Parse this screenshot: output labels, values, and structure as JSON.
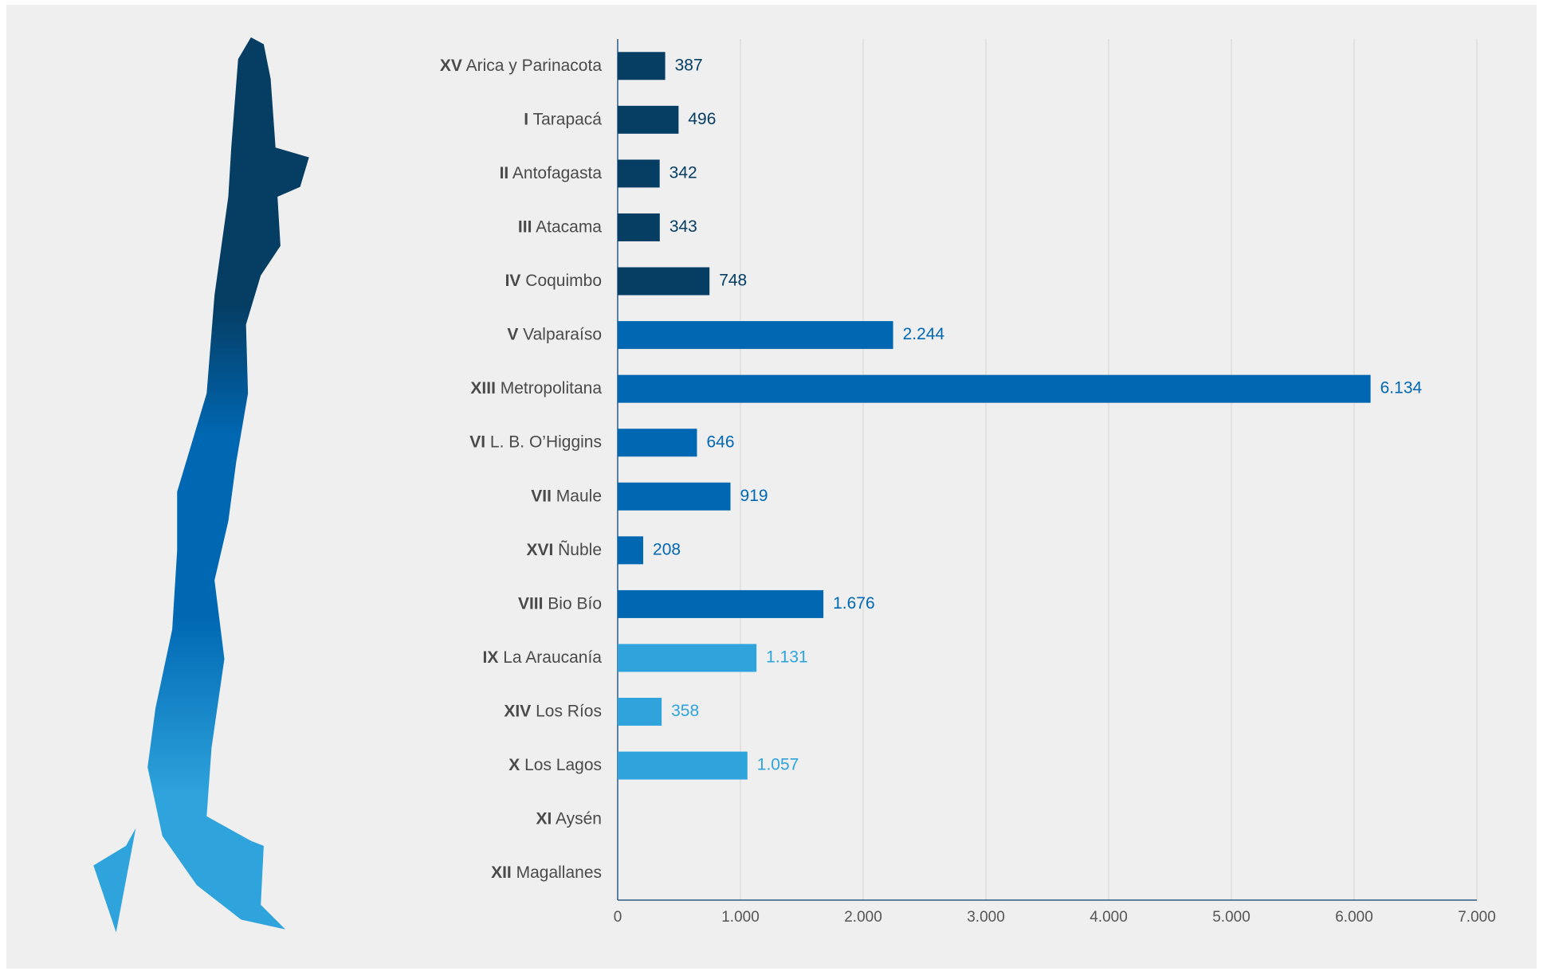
{
  "chart_data": {
    "type": "barh",
    "categories": [
      "XV Arica y Parinacota",
      "I Tarapacá",
      "II Antofagasta",
      "III Atacama",
      "IV Coquimbo",
      "V Valparaíso",
      "XIII Metropolitana",
      "VI L. B. O’Higgins",
      "VII Maule",
      "XVI Ñuble",
      "VIII Bio Bío",
      "IX La Araucanía",
      "XIV Los Ríos",
      "X Los Lagos",
      "XI Aysén",
      "XII Magallanes"
    ],
    "values": [
      387,
      496,
      342,
      343,
      748,
      2244,
      6134,
      646,
      919,
      208,
      1676,
      1131,
      358,
      1057,
      null,
      null
    ],
    "value_labels": [
      "387",
      "496",
      "342",
      "343",
      "748",
      "2.244",
      "6.134",
      "646",
      "919",
      "208",
      "1.676",
      "1.131",
      "358",
      "1.057",
      null,
      null
    ],
    "colors": [
      "#053d63",
      "#053d63",
      "#053d63",
      "#053d63",
      "#053d63",
      "#0068b3",
      "#0068b3",
      "#0068b3",
      "#0068b3",
      "#0068b3",
      "#0068b3",
      "#2ea3dc",
      "#2ea3dc",
      "#2ea3dc",
      "#2ea3dc",
      "#2ea3dc"
    ],
    "xlim": [
      0,
      7000
    ],
    "xticks": [
      0,
      {
        "value": 1000,
        "label": "1.000"
      },
      {
        "value": 2000,
        "label": "2.000"
      },
      {
        "value": 3000,
        "label": "3.000"
      },
      {
        "value": 4000,
        "label": "4.000"
      },
      {
        "value": 5000,
        "label": "5.000"
      },
      {
        "value": 6000,
        "label": "6.000"
      },
      {
        "value": 7000,
        "label": "7.000"
      }
    ],
    "grid": true
  }
}
